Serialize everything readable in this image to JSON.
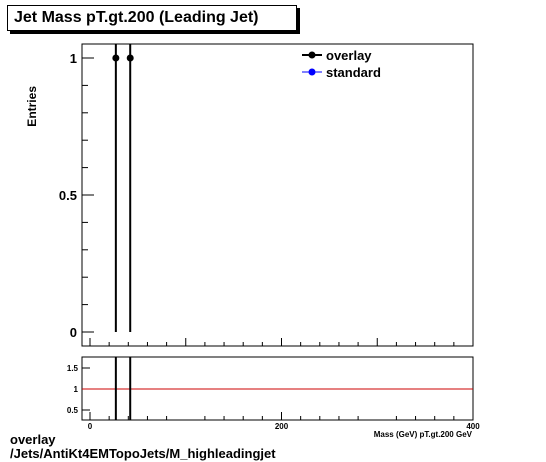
{
  "title": "Jet Mass pT.gt.200 (Leading Jet)",
  "footer": {
    "line1": "overlay",
    "line2": "/Jets/AntiKt4EMTopoJets/M_highleadingjet"
  },
  "colors": {
    "overlay": "#000000",
    "standard": "#0000ff",
    "ratio_line": "#cc0000"
  },
  "chart_data": [
    {
      "type": "scatter",
      "title": "Jet Mass pT.gt.200 (Leading Jet)",
      "ylabel": "Entries",
      "xlabel": "",
      "xlim": [
        0,
        400
      ],
      "ylim": [
        0,
        1.1
      ],
      "yticks": [
        0,
        0.5,
        1
      ],
      "ytick_labels": [
        "0",
        "0.5",
        "1"
      ],
      "legend_position": "top-right",
      "series": [
        {
          "name": "overlay",
          "x": [
            27,
            42
          ],
          "y": [
            1,
            1
          ],
          "yerr": [
            1,
            1
          ]
        },
        {
          "name": "standard",
          "x": [],
          "y": []
        }
      ]
    },
    {
      "type": "line",
      "xlim": [
        0,
        400
      ],
      "ylim": [
        0.3,
        1.7
      ],
      "xticks": [
        0,
        200,
        400
      ],
      "xtick_labels": [
        "0",
        "200",
        "400"
      ],
      "yticks": [
        0.5,
        1,
        1.5
      ],
      "ytick_labels": [
        "0.5",
        "1",
        "1.5"
      ],
      "xlabel": "Mass (GeV) pT.gt.200 GeV",
      "reference_line": 1,
      "ratio_bins_x": [
        27,
        42
      ]
    }
  ]
}
